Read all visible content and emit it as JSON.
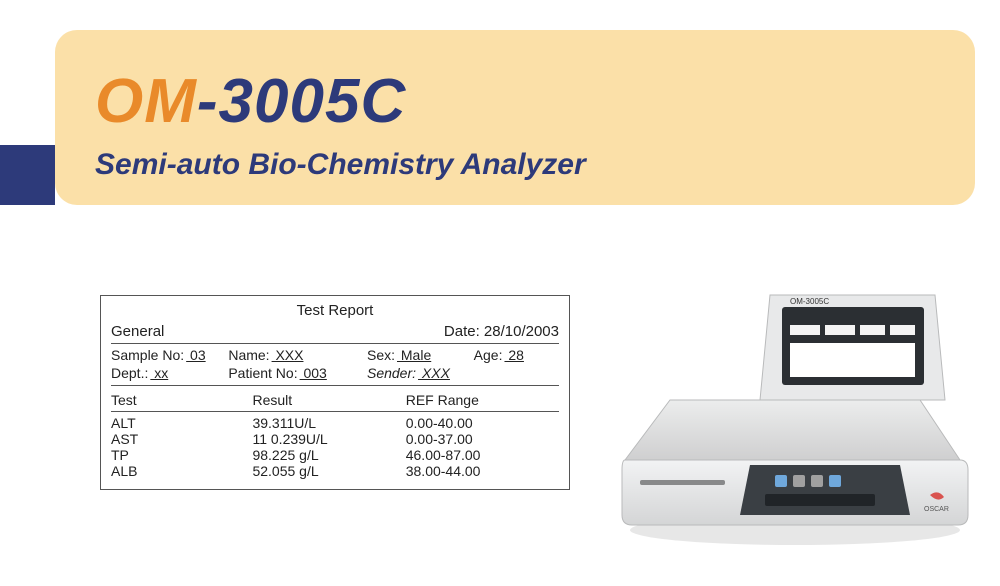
{
  "banner": {
    "title_prefix": "OM",
    "title_suffix": "-3005C",
    "subtitle": "Semi-auto Bio-Chemistry Analyzer",
    "colors": {
      "bg": "#fbe0a8",
      "bar": "#2d3a7a",
      "accent": "#e98a2a",
      "text": "#2d3a7a"
    }
  },
  "report": {
    "title": "Test Report",
    "general_label": "General",
    "date_label": "Date:",
    "date_value": "28/10/2003",
    "fields": {
      "sample_no": {
        "label": "Sample No:",
        "value": " 03"
      },
      "name": {
        "label": "Name:",
        "value": " XXX"
      },
      "sex": {
        "label": "Sex:",
        "value": " Male"
      },
      "age": {
        "label": "Age:",
        "value": " 28"
      },
      "dept": {
        "label": "Dept.:",
        "value": " xx"
      },
      "patient_no": {
        "label": "Patient No:",
        "value": " 003"
      },
      "sender": {
        "label": "Sender:",
        "value": " XXX"
      }
    },
    "columns": {
      "test": "Test",
      "result": "Result",
      "ref": "REF Range"
    },
    "rows": [
      {
        "test": "ALT",
        "result": "39.311U/L",
        "ref": "0.00-40.00"
      },
      {
        "test": "AST",
        "result": "11 0.239U/L",
        "ref": "0.00-37.00"
      },
      {
        "test": "TP",
        "result": "98.225 g/L",
        "ref": "46.00-87.00"
      },
      {
        "test": "ALB",
        "result": "52.055 g/L",
        "ref": "38.00-44.00"
      }
    ]
  },
  "device": {
    "label": "OM-3005C",
    "brand": "OSCAR",
    "body_color": "#e6e7e8",
    "shadow": "#c9cacb",
    "screen_bg": "#2b2f33",
    "panel_bg": "#3a3f44",
    "accent": "#d9534f"
  }
}
